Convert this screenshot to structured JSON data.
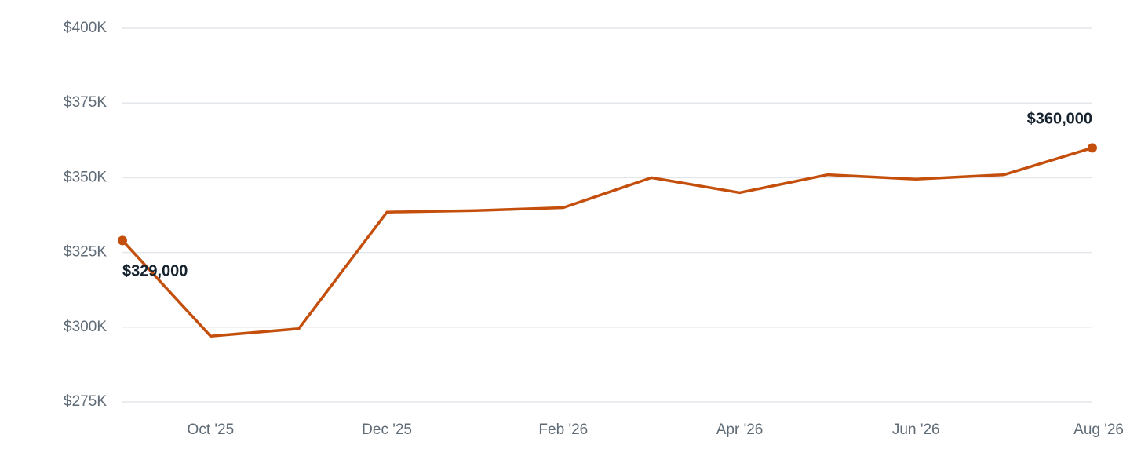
{
  "chart_data": {
    "type": "line",
    "categories": [
      null,
      "Oct '25",
      null,
      "Dec '25",
      null,
      "Feb '26",
      null,
      "Apr '26",
      null,
      "Jun '26",
      null,
      "Aug '26"
    ],
    "values": [
      329000,
      297000,
      299500,
      338500,
      339000,
      340000,
      350000,
      345000,
      351000,
      349500,
      351000,
      360000
    ],
    "value_labels": [
      "$329,000",
      null,
      null,
      null,
      null,
      null,
      null,
      null,
      null,
      null,
      null,
      "$360,000"
    ],
    "color": "#c44f0c",
    "ylim": [
      275000,
      400000
    ],
    "yticks": [
      {
        "value": 275000,
        "label": "$275K"
      },
      {
        "value": 300000,
        "label": "$300K"
      },
      {
        "value": 325000,
        "label": "$325K"
      },
      {
        "value": 350000,
        "label": "$350K"
      },
      {
        "value": 375000,
        "label": "$375K"
      },
      {
        "value": 400000,
        "label": "$400K"
      }
    ],
    "grid": true
  }
}
